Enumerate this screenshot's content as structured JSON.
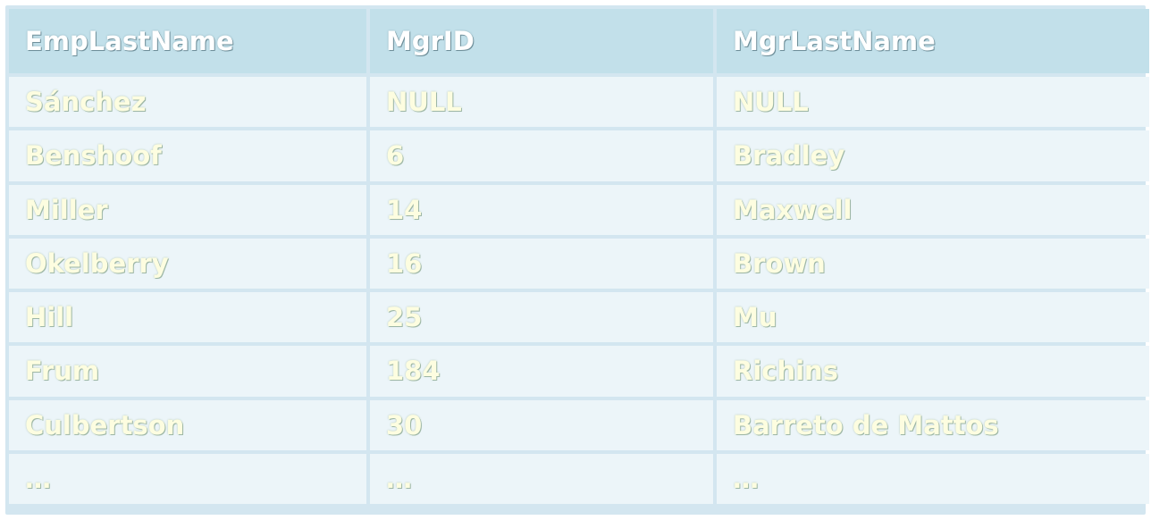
{
  "table": {
    "headers": [
      "EmpLastName",
      "MgrID",
      "MgrLastName"
    ],
    "rows": [
      [
        "Sánchez",
        "NULL",
        "NULL"
      ],
      [
        "Benshoof",
        "6",
        "Bradley"
      ],
      [
        "Miller",
        "14",
        "Maxwell"
      ],
      [
        "Okelberry",
        "16",
        "Brown"
      ],
      [
        "Hill",
        "25",
        "Mu"
      ],
      [
        "Frum",
        "184",
        "Richins"
      ],
      [
        "Culbertson",
        "30",
        "Barreto de Mattos"
      ],
      [
        "…",
        "…",
        "…"
      ]
    ]
  },
  "colors": {
    "header_bg": "#c2e0ea",
    "cell_bg": "#ecf5f9",
    "frame_bg": "#d3e6f0"
  }
}
